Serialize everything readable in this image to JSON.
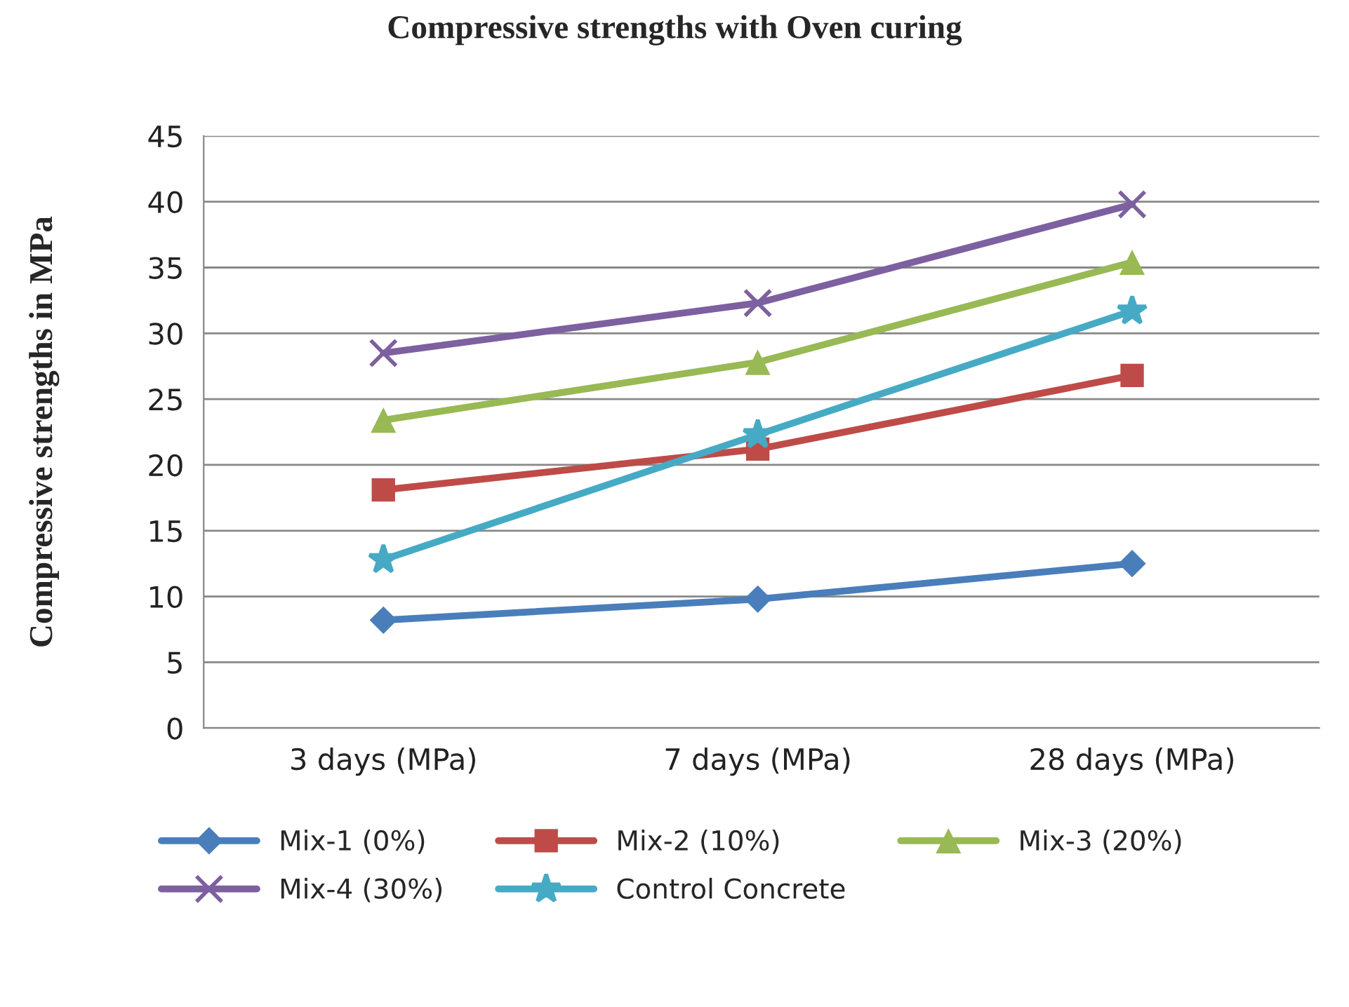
{
  "chart_data": {
    "type": "line",
    "title": "Compressive strengths with Oven curing",
    "ylabel": "Compressive strengths in MPa",
    "categories": [
      "3 days (MPa)",
      "7 days (MPa)",
      "28 days (MPa)"
    ],
    "series": [
      {
        "name": "Mix-1 (0%)",
        "color": "#4a7ebb",
        "marker": "diamond",
        "values": [
          8.2,
          9.8,
          12.5
        ]
      },
      {
        "name": "Mix-2 (10%)",
        "color": "#be4b48",
        "marker": "square",
        "values": [
          18.1,
          21.2,
          26.8
        ]
      },
      {
        "name": "Mix-3 (20%)",
        "color": "#98b954",
        "marker": "triangle",
        "values": [
          23.4,
          27.8,
          35.4
        ]
      },
      {
        "name": "Mix-4 (30%)",
        "color": "#7d60a0",
        "marker": "cross",
        "values": [
          28.5,
          32.3,
          39.8
        ]
      },
      {
        "name": "Control Concrete",
        "color": "#46aac5",
        "marker": "star",
        "values": [
          12.8,
          22.3,
          31.7
        ]
      }
    ],
    "ylim": [
      0,
      45
    ],
    "yticks": [
      0,
      5,
      10,
      15,
      20,
      25,
      30,
      35,
      40,
      45
    ],
    "grid": "y",
    "legend": "bottom",
    "line_style": "solid"
  }
}
